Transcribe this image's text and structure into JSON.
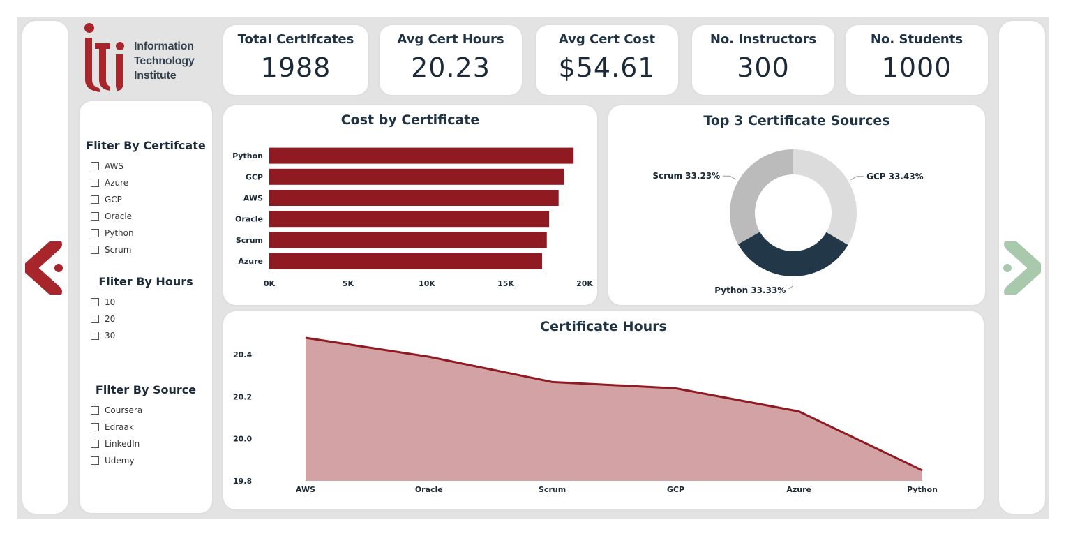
{
  "brand": {
    "logo_lines": [
      "Information",
      "Technology",
      "Institute"
    ],
    "logo_color": "#a6262c"
  },
  "kpis": [
    {
      "label": "Total Certifcates",
      "value": "1988"
    },
    {
      "label": "Avg Cert Hours",
      "value": "20.23"
    },
    {
      "label": "Avg Cert Cost",
      "value": "$54.61"
    },
    {
      "label": "No. Instructors",
      "value": "300"
    },
    {
      "label": "No. Students",
      "value": "1000"
    }
  ],
  "filters": {
    "certificate": {
      "title": "Fliter By Certifcate",
      "options": [
        "AWS",
        "Azure",
        "GCP",
        "Oracle",
        "Python",
        "Scrum"
      ]
    },
    "hours": {
      "title": "Fliter By Hours",
      "options": [
        "10",
        "20",
        "30"
      ]
    },
    "source": {
      "title": "Fliter By Source",
      "options": [
        "Coursera",
        "Edraak",
        "LinkedIn",
        "Udemy"
      ]
    }
  },
  "navigation": {
    "prev_icon": "chevron-left-icon",
    "next_icon": "chevron-right-icon",
    "prev_color": "#a6262c",
    "next_color": "#a9c9ad"
  },
  "chart_data": [
    {
      "type": "bar",
      "orientation": "horizontal",
      "title": "Cost by Certificate",
      "categories": [
        "Python",
        "GCP",
        "AWS",
        "Oracle",
        "Scrum",
        "Azure"
      ],
      "values": [
        19300,
        18700,
        18350,
        17750,
        17600,
        17300
      ],
      "xlim": [
        0,
        20000
      ],
      "xticks": [
        "0K",
        "5K",
        "10K",
        "15K",
        "20K"
      ],
      "color": "#8f1a22",
      "grid": false
    },
    {
      "type": "pie",
      "variant": "donut",
      "title": "Top 3 Certificate Sources",
      "slices": [
        {
          "name": "GCP",
          "value": 33.43,
          "label": "GCP 33.43%",
          "color": "#dcdcdc"
        },
        {
          "name": "Python",
          "value": 33.33,
          "label": "Python 33.33%",
          "color": "#223848"
        },
        {
          "name": "Scrum",
          "value": 33.23,
          "label": "Scrum 33.23%",
          "color": "#bbbbbb"
        }
      ]
    },
    {
      "type": "area",
      "title": "Certificate Hours",
      "categories": [
        "AWS",
        "Oracle",
        "Scrum",
        "GCP",
        "Azure",
        "Python"
      ],
      "values": [
        20.48,
        20.39,
        20.27,
        20.24,
        20.13,
        19.85
      ],
      "ylim": [
        19.8,
        20.5
      ],
      "yticks": [
        "19.8",
        "20.0",
        "20.2",
        "20.4"
      ],
      "line_color": "#8f1a22",
      "fill_color": "#d2a2a4",
      "grid": false
    }
  ]
}
